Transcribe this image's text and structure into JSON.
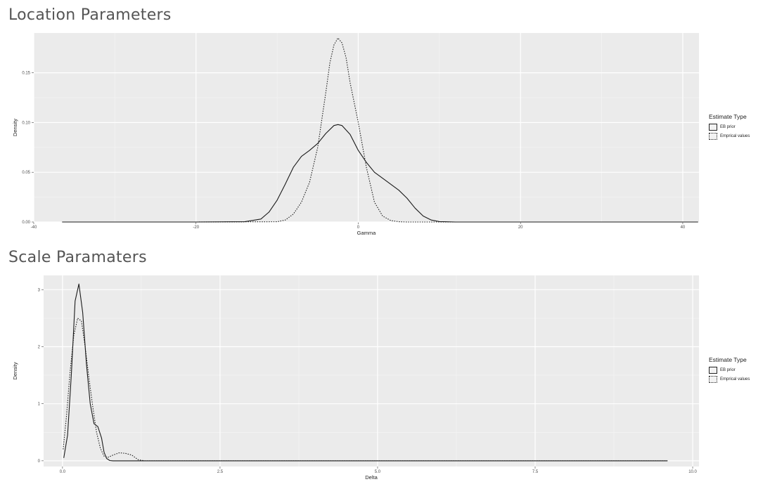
{
  "sections": [
    {
      "title": "Location Parameters"
    },
    {
      "title": "Scale Paramaters"
    }
  ],
  "legend": {
    "title": "Estimate Type",
    "entries": [
      {
        "label": "EB prior",
        "linetype": "solid"
      },
      {
        "label": "Emprical values",
        "linetype": "dotted"
      }
    ]
  },
  "chart_data": [
    {
      "type": "line",
      "title": "Location Parameters",
      "xlabel": "Gamma",
      "ylabel": "Density",
      "xlim": [
        -40,
        42
      ],
      "ylim": [
        0,
        0.19
      ],
      "xticks": [
        -40,
        -20,
        0,
        20,
        40
      ],
      "xtick_labels": [
        "-40",
        "-20",
        "0",
        "20",
        "40"
      ],
      "yticks": [
        0,
        0.05,
        0.1,
        0.15
      ],
      "ytick_labels": [
        "0.00",
        "0.05",
        "0.10",
        "0.15"
      ],
      "grid": true,
      "legend_position": "right",
      "series": [
        {
          "name": "EB prior",
          "linetype": "solid",
          "x": [
            -36.5,
            -20,
            -14,
            -12,
            -11,
            -10,
            -9,
            -8,
            -7,
            -6,
            -5,
            -4,
            -3,
            -2.5,
            -2,
            -1,
            0,
            1,
            2,
            3,
            4,
            5,
            6,
            7,
            8,
            9,
            10,
            12,
            20,
            41.9
          ],
          "y": [
            0,
            0,
            0.0003,
            0.003,
            0.01,
            0.022,
            0.038,
            0.055,
            0.066,
            0.072,
            0.079,
            0.089,
            0.097,
            0.098,
            0.097,
            0.088,
            0.072,
            0.06,
            0.05,
            0.044,
            0.038,
            0.032,
            0.024,
            0.014,
            0.006,
            0.002,
            0.0004,
            0,
            0,
            0
          ]
        },
        {
          "name": "Emprical values",
          "linetype": "dotted",
          "x": [
            -36.5,
            -20,
            -10,
            -9,
            -8,
            -7,
            -6,
            -5,
            -4,
            -3.5,
            -3,
            -2.5,
            -2,
            -1.5,
            -1,
            0,
            1,
            2,
            3,
            4,
            5,
            6,
            8,
            20,
            41.9
          ],
          "y": [
            0,
            0,
            0.0003,
            0.002,
            0.008,
            0.02,
            0.04,
            0.075,
            0.13,
            0.16,
            0.178,
            0.185,
            0.18,
            0.165,
            0.14,
            0.1,
            0.055,
            0.02,
            0.006,
            0.0015,
            0.0003,
            0,
            0,
            0,
            0
          ]
        }
      ]
    },
    {
      "type": "line",
      "title": "Scale Paramaters",
      "xlabel": "Delta",
      "ylabel": "Density",
      "xlim": [
        -0.3,
        10.1
      ],
      "ylim": [
        -0.1,
        3.25
      ],
      "xticks": [
        0,
        2.5,
        5,
        7.5,
        10
      ],
      "xtick_labels": [
        "0.0",
        "2.5",
        "5.0",
        "7.5",
        "10.0"
      ],
      "yticks": [
        0,
        1,
        2,
        3
      ],
      "ytick_labels": [
        "0",
        "1",
        "2",
        "3"
      ],
      "grid": true,
      "legend_position": "right",
      "series": [
        {
          "name": "EB prior",
          "linetype": "solid",
          "x": [
            0.02,
            0.08,
            0.14,
            0.2,
            0.26,
            0.32,
            0.38,
            0.44,
            0.5,
            0.56,
            0.62,
            0.66,
            0.7,
            0.75,
            0.8,
            0.9,
            1.2,
            3,
            9.6
          ],
          "y": [
            0.05,
            0.45,
            1.5,
            2.8,
            3.1,
            2.6,
            1.7,
            1.0,
            0.65,
            0.6,
            0.4,
            0.15,
            0.04,
            0.005,
            0,
            0,
            0,
            0,
            0
          ]
        },
        {
          "name": "Emprical values",
          "linetype": "dotted",
          "x": [
            0.01,
            0.06,
            0.12,
            0.18,
            0.24,
            0.3,
            0.36,
            0.42,
            0.48,
            0.54,
            0.6,
            0.66,
            0.72,
            0.8,
            0.9,
            1.0,
            1.1,
            1.2,
            1.3,
            3,
            9.6
          ],
          "y": [
            0.2,
            0.75,
            1.55,
            2.2,
            2.5,
            2.45,
            2.0,
            1.45,
            0.95,
            0.5,
            0.22,
            0.08,
            0.06,
            0.1,
            0.14,
            0.13,
            0.1,
            0.02,
            0,
            0,
            0
          ]
        }
      ]
    }
  ]
}
